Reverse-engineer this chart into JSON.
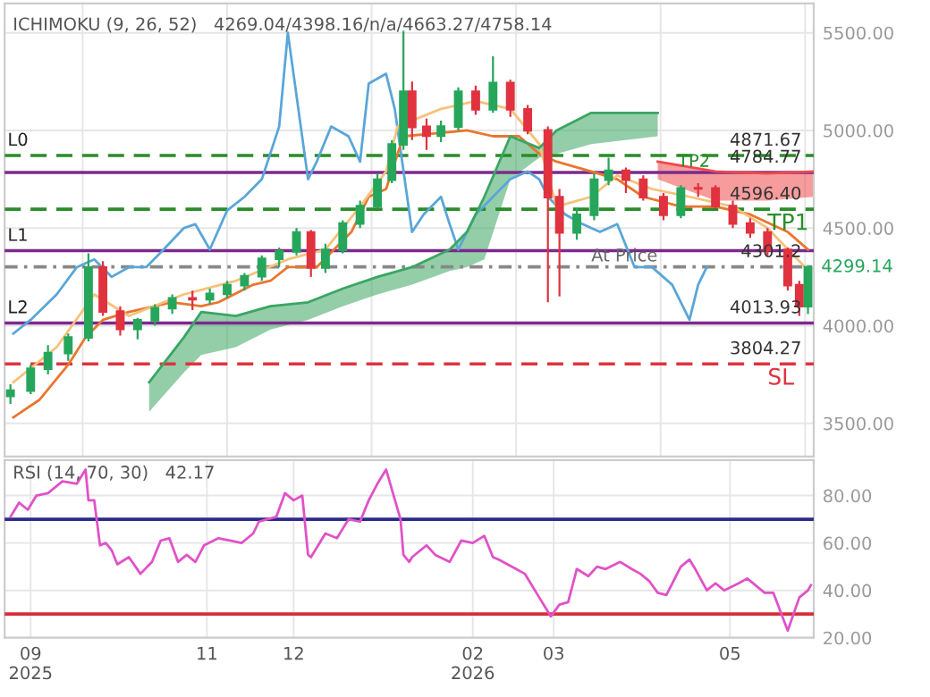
{
  "chart_data": [
    {
      "type": "candlestick",
      "title": "ICHIMOKU (9, 26, 52)   4269.04/4398.16/n/a/4663.27/4758.14",
      "x": [
        "2025-08-25",
        "2025-09-01",
        "2025-09-07",
        "2025-09-14",
        "2025-09-21",
        "2025-09-26",
        "2025-10-02",
        "2025-10-08",
        "2025-10-14",
        "2025-10-20",
        "2025-10-27",
        "2025-11-02",
        "2025-11-08",
        "2025-11-14",
        "2025-11-20",
        "2025-11-26",
        "2025-12-02",
        "2025-12-07",
        "2025-12-12",
        "2025-12-18",
        "2025-12-24",
        "2025-12-30",
        "2026-01-04",
        "2026-01-08",
        "2026-01-11",
        "2026-01-16",
        "2026-01-21",
        "2026-01-27",
        "2026-02-02",
        "2026-02-08",
        "2026-02-14",
        "2026-02-20",
        "2026-02-27",
        "2026-03-03",
        "2026-03-09",
        "2026-03-15",
        "2026-03-20",
        "2026-03-26",
        "2026-04-01",
        "2026-04-08",
        "2026-04-14",
        "2026-04-20",
        "2026-04-26",
        "2026-05-02",
        "2026-05-08",
        "2026-05-14",
        "2026-05-21",
        "2026-05-25",
        "2026-05-28"
      ],
      "ohlc": [
        [
          3640,
          3700,
          3600,
          3668
        ],
        [
          3668,
          3800,
          3650,
          3780
        ],
        [
          3780,
          3900,
          3750,
          3860
        ],
        [
          3860,
          3960,
          3820,
          3940
        ],
        [
          3940,
          4370,
          3920,
          4298
        ],
        [
          4298,
          4330,
          4050,
          4073
        ],
        [
          4073,
          4100,
          3950,
          3983
        ],
        [
          3983,
          4040,
          3930,
          4028
        ],
        [
          4028,
          4110,
          4000,
          4090
        ],
        [
          4090,
          4160,
          4060,
          4140
        ],
        [
          4140,
          4180,
          4080,
          4136
        ],
        [
          4136,
          4190,
          4110,
          4163
        ],
        [
          4163,
          4230,
          4140,
          4208
        ],
        [
          4208,
          4270,
          4180,
          4253
        ],
        [
          4253,
          4360,
          4230,
          4343
        ],
        [
          4343,
          4400,
          4300,
          4380
        ],
        [
          4380,
          4500,
          4360,
          4478
        ],
        [
          4478,
          4490,
          4250,
          4298
        ],
        [
          4298,
          4420,
          4270,
          4388
        ],
        [
          4388,
          4540,
          4370,
          4523
        ],
        [
          4523,
          4640,
          4500,
          4613
        ],
        [
          4613,
          4780,
          4600,
          4748
        ],
        [
          4748,
          4950,
          4730,
          4928
        ],
        [
          4928,
          5510,
          4900,
          5198
        ],
        [
          5198,
          5250,
          4950,
          5018
        ],
        [
          5018,
          5060,
          4900,
          4973
        ],
        [
          4973,
          5050,
          4940,
          5020
        ],
        [
          5020,
          5220,
          5000,
          5198
        ],
        [
          5198,
          5230,
          5080,
          5108
        ],
        [
          5108,
          5380,
          5090,
          5243
        ],
        [
          5243,
          5260,
          5070,
          5108
        ],
        [
          5108,
          5130,
          4980,
          5000
        ],
        [
          5000,
          5020,
          4120,
          4658
        ],
        [
          4658,
          4700,
          4150,
          4478
        ],
        [
          4478,
          4600,
          4440,
          4568
        ],
        [
          4568,
          4780,
          4540,
          4748
        ],
        [
          4748,
          4860,
          4720,
          4793
        ],
        [
          4793,
          4810,
          4680,
          4748
        ],
        [
          4748,
          4770,
          4640,
          4658
        ],
        [
          4658,
          4680,
          4540,
          4568
        ],
        [
          4568,
          4720,
          4550,
          4703
        ],
        [
          4703,
          4730,
          4660,
          4703
        ],
        [
          4703,
          4720,
          4600,
          4613
        ],
        [
          4613,
          4640,
          4500,
          4523
        ],
        [
          4523,
          4550,
          4450,
          4478
        ],
        [
          4478,
          4500,
          4360,
          4388
        ],
        [
          4388,
          4400,
          4180,
          4208
        ],
        [
          4208,
          4230,
          4050,
          4100
        ],
        [
          4100,
          4310,
          4060,
          4299.14
        ]
      ],
      "colors": [
        "#26a65b",
        "#26a65b",
        "#26a65b",
        "#26a65b",
        "#26a65b",
        "#e0323f",
        "#e0323f",
        "#26a65b",
        "#26a65b",
        "#26a65b",
        "#e0323f",
        "#26a65b",
        "#26a65b",
        "#26a65b",
        "#26a65b",
        "#26a65b",
        "#26a65b",
        "#e0323f",
        "#26a65b",
        "#26a65b",
        "#26a65b",
        "#26a65b",
        "#26a65b",
        "#26a65b",
        "#e0323f",
        "#e0323f",
        "#26a65b",
        "#26a65b",
        "#e0323f",
        "#26a65b",
        "#e0323f",
        "#e0323f",
        "#e0323f",
        "#e0323f",
        "#26a65b",
        "#26a65b",
        "#26a65b",
        "#e0323f",
        "#e0323f",
        "#e0323f",
        "#26a65b",
        "#e0323f",
        "#e0323f",
        "#e0323f",
        "#e0323f",
        "#e0323f",
        "#e0323f",
        "#e0323f",
        "#26a65b"
      ],
      "series": [
        {
          "type": "line",
          "color": "#5aa6d8",
          "x": [
            "2025-08-26",
            "2025-09-01",
            "2025-09-10",
            "2025-09-17",
            "2025-09-23",
            "2025-09-29",
            "2025-10-05",
            "2025-10-11",
            "2025-10-17",
            "2025-10-24",
            "2025-10-28",
            "2025-11-02",
            "2025-11-08",
            "2025-11-14",
            "2025-11-20",
            "2025-11-26",
            "2025-11-29",
            "2025-12-06",
            "2025-12-09",
            "2025-12-14",
            "2025-12-20",
            "2025-12-24",
            "2025-12-27",
            "2026-01-02",
            "2026-01-05",
            "2026-01-11",
            "2026-01-15",
            "2026-01-21",
            "2026-01-24",
            "2026-01-27",
            "2026-02-02",
            "2026-02-08",
            "2026-02-14",
            "2026-02-20",
            "2026-02-24",
            "2026-02-27",
            "2026-03-05",
            "2026-03-11",
            "2026-03-17",
            "2026-03-23",
            "2026-03-29",
            "2026-04-04",
            "2026-04-11",
            "2026-04-17",
            "2026-04-20",
            "2026-04-23"
          ],
          "values": [
            3960,
            4030,
            4160,
            4300,
            4340,
            4250,
            4300,
            4300,
            4390,
            4500,
            4520,
            4390,
            4590,
            4660,
            4750,
            5020,
            5500,
            4750,
            4840,
            5020,
            4970,
            4840,
            5240,
            5290,
            5110,
            4480,
            4570,
            4660,
            4520,
            4390,
            4570,
            4660,
            4750,
            4790,
            4750,
            4660,
            4570,
            4520,
            4480,
            4520,
            4300,
            4300,
            4210,
            4030,
            4210,
            4300
          ]
        },
        {
          "type": "line",
          "color": "#e8772e",
          "x": [
            "2025-08-26",
            "2025-09-04",
            "2025-09-14",
            "2025-09-20",
            "2025-09-26",
            "2025-10-05",
            "2025-10-14",
            "2025-10-20",
            "2025-10-30",
            "2025-11-05",
            "2025-11-17",
            "2025-11-23",
            "2025-11-29",
            "2025-12-09",
            "2025-12-15",
            "2025-12-21",
            "2025-12-27",
            "2026-01-02",
            "2026-01-08",
            "2026-01-30",
            "2026-02-08",
            "2026-02-17",
            "2026-02-24",
            "2026-03-02",
            "2026-03-14",
            "2026-03-23",
            "2026-04-01",
            "2026-04-14",
            "2026-04-26",
            "2026-05-08",
            "2026-05-21",
            "2026-05-28"
          ],
          "values": [
            3530,
            3620,
            3800,
            3940,
            4030,
            4070,
            4100,
            4120,
            4100,
            4120,
            4210,
            4230,
            4300,
            4300,
            4390,
            4480,
            4660,
            4700,
            4970,
            5000,
            4970,
            4970,
            4880,
            4840,
            4790,
            4750,
            4660,
            4610,
            4610,
            4570,
            4480,
            4390
          ]
        },
        {
          "type": "line",
          "color": "#f5c27a",
          "x": [
            "2025-08-26",
            "2025-09-10",
            "2025-09-23",
            "2025-10-05",
            "2025-10-24",
            "2025-11-11",
            "2025-11-29",
            "2025-12-12",
            "2025-12-24",
            "2026-01-02",
            "2026-01-06",
            "2026-01-21",
            "2026-02-02",
            "2026-02-14",
            "2026-02-24",
            "2026-03-02",
            "2026-03-14",
            "2026-03-23",
            "2026-04-04",
            "2026-04-17",
            "2026-05-02",
            "2026-05-14",
            "2026-05-27"
          ],
          "values": [
            3710,
            3890,
            4160,
            4050,
            4160,
            4230,
            4340,
            4390,
            4610,
            4790,
            5020,
            5110,
            5150,
            5110,
            4930,
            4610,
            4660,
            4770,
            4700,
            4660,
            4610,
            4500,
            4300
          ]
        },
        {
          "type": "line",
          "color": "#3aa663",
          "x": [
            "2025-10-12",
            "2025-10-24",
            "2025-10-30",
            "2025-11-11",
            "2025-11-23",
            "2025-12-06",
            "2025-12-18",
            "2025-12-30",
            "2026-01-11",
            "2026-01-24",
            "2026-01-30",
            "2026-02-05",
            "2026-02-14",
            "2026-02-24",
            "2026-03-02",
            "2026-03-14",
            "2026-04-06"
          ],
          "values": [
            3710,
            3940,
            4070,
            4050,
            4100,
            4120,
            4190,
            4250,
            4300,
            4390,
            4480,
            4660,
            4970,
            4910,
            5000,
            5090,
            5090
          ],
          "upper": [
            3710,
            3940,
            4070,
            4050,
            4100,
            4120,
            4190,
            4250,
            4300,
            4390,
            4480,
            4660,
            4970,
            4910,
            5000,
            5090,
            5090
          ],
          "lower": [
            3560,
            3760,
            3850,
            3890,
            3980,
            4030,
            4100,
            4160,
            4210,
            4280,
            4300,
            4340,
            4750,
            4860,
            4880,
            4930,
            4970
          ]
        },
        {
          "type": "line",
          "color": "#f04b4b",
          "x": [
            "2026-04-06",
            "2026-04-26",
            "2026-05-14",
            "2026-05-30"
          ],
          "values": [
            4840,
            4790,
            4780,
            4790
          ],
          "upper": [
            4840,
            4790,
            4780,
            4790
          ],
          "lower": [
            4750,
            4640,
            4640,
            4660
          ]
        }
      ],
      "ref_lines": [
        {
          "axis": "y",
          "value": 4871.67,
          "label": "4871.67",
          "color": "#2a8c2a",
          "line_style": "dashed"
        },
        {
          "axis": "y",
          "value": 4784.77,
          "label": "4784.77",
          "color": "#7b2a8c",
          "line_style": "solid"
        },
        {
          "axis": "y",
          "value": 4596.4,
          "label": "4596.40",
          "color": "#2a8c2a",
          "line_style": "dashed"
        },
        {
          "axis": "y",
          "value": 4384,
          "label": null,
          "color": "#7b2a8c",
          "line_style": "solid"
        },
        {
          "axis": "y",
          "value": 4301.2,
          "label": "4301.2",
          "color": "#888888",
          "line_style": "dotted"
        },
        {
          "axis": "y",
          "value": 4013.93,
          "label": "4013.93",
          "color": "#7b2a8c",
          "line_style": "solid"
        },
        {
          "axis": "y",
          "value": 3804.27,
          "label": "3804.27",
          "color": "#e0323f",
          "line_style": "dashed"
        }
      ],
      "annotations": [
        {
          "text": "L0",
          "x": "2025-08-24",
          "y": 4871.67
        },
        {
          "text": "L1",
          "x": "2025-08-24",
          "y": 4384
        },
        {
          "text": "L2",
          "x": "2025-08-24",
          "y": 4013.93
        },
        {
          "text": "TP2",
          "x": "2026-04-13",
          "y": 4784.77
        },
        {
          "text": "TP1",
          "x": "2026-05-14",
          "y": 4596.4
        },
        {
          "text": "At Price",
          "x": "2026-03-14",
          "y": 4301.2
        },
        {
          "text": "SL",
          "x": "2026-05-14",
          "y": 3804.27
        },
        {
          "text": "4299.14",
          "x": "2026-05-30",
          "y": 4299.14
        }
      ],
      "xlim": [
        "2025-08-23",
        "2026-05-30"
      ],
      "ylim": [
        3330,
        5650
      ],
      "yticks": [
        {
          "value": 3500,
          "label": "3500.00"
        },
        {
          "value": 4000,
          "label": "4000.00"
        },
        {
          "value": 4500,
          "label": "4500.00"
        },
        {
          "value": 5000,
          "label": "5000.00"
        },
        {
          "value": 5500,
          "label": "5500.00"
        }
      ],
      "grid": true,
      "tick_labels": "y"
    },
    {
      "type": "line",
      "title": "RSI (14, 70, 30)   42.17",
      "series": [
        {
          "type": "line",
          "color": "#e052c8",
          "x": [
            "2025-08-25",
            "2025-08-28",
            "2025-08-31",
            "2025-09-03",
            "2025-09-07",
            "2025-09-12",
            "2025-09-17",
            "2025-09-20",
            "2025-09-21",
            "2025-09-23",
            "2025-09-25",
            "2025-09-27",
            "2025-09-29",
            "2025-10-01",
            "2025-10-05",
            "2025-10-09",
            "2025-10-13",
            "2025-10-16",
            "2025-10-19",
            "2025-10-22",
            "2025-10-25",
            "2025-10-28",
            "2025-10-31",
            "2025-11-05",
            "2025-11-09",
            "2025-11-13",
            "2025-11-17",
            "2025-11-19",
            "2025-11-25",
            "2025-11-28",
            "2025-12-01",
            "2025-12-04",
            "2025-12-06",
            "2025-12-07",
            "2025-12-12",
            "2025-12-16",
            "2025-12-20",
            "2025-12-24",
            "2025-12-27",
            "2025-12-30",
            "2026-01-02",
            "2026-01-07",
            "2026-01-08",
            "2026-01-10",
            "2026-01-11",
            "2026-01-16",
            "2026-01-19",
            "2026-01-24",
            "2026-01-28",
            "2026-02-01",
            "2026-02-05",
            "2026-02-08",
            "2026-02-10",
            "2026-02-16",
            "2026-02-19",
            "2026-02-24",
            "2026-02-28",
            "2026-03-03",
            "2026-03-06",
            "2026-03-09",
            "2026-03-13",
            "2026-03-16",
            "2026-03-19",
            "2026-03-24",
            "2026-03-28",
            "2026-03-31",
            "2026-04-03",
            "2026-04-06",
            "2026-04-09",
            "2026-04-14",
            "2026-04-17",
            "2026-04-19",
            "2026-04-23",
            "2026-04-26",
            "2026-04-29",
            "2026-05-04",
            "2026-05-07",
            "2026-05-10",
            "2026-05-13",
            "2026-05-16",
            "2026-05-21",
            "2026-05-25",
            "2026-05-28",
            "2026-05-29"
          ],
          "values": [
            71,
            77,
            74,
            80,
            81,
            86,
            85,
            91,
            78,
            78,
            59,
            60,
            57,
            51,
            54,
            47,
            52,
            61,
            62,
            52,
            55,
            52,
            59,
            62,
            61,
            60,
            64,
            69,
            71,
            81,
            78,
            80,
            55,
            54,
            64,
            62,
            70,
            69,
            78,
            85,
            91,
            70,
            55,
            52,
            54,
            59,
            55,
            52,
            61,
            60,
            63,
            54,
            53,
            49,
            47,
            37,
            29,
            34,
            35,
            49,
            46,
            50,
            49,
            52,
            49,
            47,
            44,
            39,
            38,
            50,
            53,
            49,
            40,
            43,
            40,
            43,
            45,
            42,
            39,
            39,
            23,
            37,
            40,
            42.17
          ]
        }
      ],
      "ref_lines": [
        {
          "axis": "y",
          "value": 70,
          "label": null,
          "color": "#2b2b8c",
          "line_style": "solid"
        },
        {
          "axis": "y",
          "value": 30,
          "label": null,
          "color": "#d62f3a",
          "line_style": "solid"
        }
      ],
      "xlim": [
        "2025-08-23",
        "2026-05-30"
      ],
      "ylim": [
        20,
        95
      ],
      "xticks": [
        {
          "value": "2025-09-01",
          "label": "09\n2025"
        },
        {
          "value": "2025-11-01",
          "label": "11"
        },
        {
          "value": "2025-12-01",
          "label": "12"
        },
        {
          "value": "2026-02-01",
          "label": "02\n2026"
        },
        {
          "value": "2026-03-01",
          "label": "03"
        },
        {
          "value": "2026-05-01",
          "label": "05"
        }
      ],
      "yticks": [
        {
          "value": 20,
          "label": "20.00"
        },
        {
          "value": 40,
          "label": "40.00"
        },
        {
          "value": 60,
          "label": "60.00"
        },
        {
          "value": 80,
          "label": "80.00"
        }
      ],
      "grid": true
    }
  ]
}
